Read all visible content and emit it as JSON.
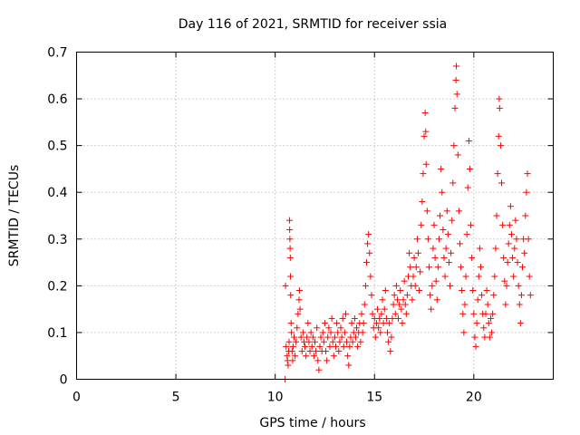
{
  "chart_data": {
    "type": "scatter",
    "title": "Day 116 of 2021, SRMTID for receiver ssia",
    "xlabel": "GPS time / hours",
    "ylabel": "SRMTID / TECUs",
    "xlim": [
      0,
      24
    ],
    "ylim": [
      0,
      0.7
    ],
    "xticks": [
      "0",
      "5",
      "10",
      "15",
      "20"
    ],
    "xtick_values": [
      0,
      5,
      10,
      15,
      20
    ],
    "yticks": [
      "0",
      "0.1",
      "0.2",
      "0.3",
      "0.4",
      "0.5",
      "0.6",
      "0.7"
    ],
    "ytick_values": [
      0,
      0.1,
      0.2,
      0.3,
      0.4,
      0.5,
      0.6,
      0.7
    ],
    "grid": true,
    "marker": "+",
    "color": "#ff0000",
    "series": [
      {
        "name": "SRMTID",
        "points": [
          [
            10.5,
            0.0
          ],
          [
            10.52,
            0.2
          ],
          [
            10.55,
            0.07
          ],
          [
            10.6,
            0.05
          ],
          [
            10.62,
            0.04
          ],
          [
            10.65,
            0.03
          ],
          [
            10.68,
            0.06
          ],
          [
            10.7,
            0.08
          ],
          [
            10.72,
            0.34
          ],
          [
            10.73,
            0.32
          ],
          [
            10.74,
            0.3
          ],
          [
            10.75,
            0.28
          ],
          [
            10.76,
            0.26
          ],
          [
            10.77,
            0.22
          ],
          [
            10.78,
            0.18
          ],
          [
            10.8,
            0.12
          ],
          [
            10.82,
            0.1
          ],
          [
            10.85,
            0.06
          ],
          [
            10.88,
            0.04
          ],
          [
            10.9,
            0.07
          ],
          [
            10.95,
            0.09
          ],
          [
            11.0,
            0.05
          ],
          [
            11.05,
            0.08
          ],
          [
            11.1,
            0.11
          ],
          [
            11.15,
            0.14
          ],
          [
            11.2,
            0.17
          ],
          [
            11.22,
            0.19
          ],
          [
            11.25,
            0.15
          ],
          [
            11.3,
            0.09
          ],
          [
            11.35,
            0.06
          ],
          [
            11.4,
            0.1
          ],
          [
            11.45,
            0.08
          ],
          [
            11.5,
            0.07
          ],
          [
            11.55,
            0.05
          ],
          [
            11.6,
            0.09
          ],
          [
            11.65,
            0.12
          ],
          [
            11.7,
            0.08
          ],
          [
            11.75,
            0.06
          ],
          [
            11.8,
            0.1
          ],
          [
            11.85,
            0.07
          ],
          [
            11.9,
            0.09
          ],
          [
            11.95,
            0.05
          ],
          [
            12.0,
            0.08
          ],
          [
            12.05,
            0.06
          ],
          [
            12.1,
            0.11
          ],
          [
            12.15,
            0.04
          ],
          [
            12.2,
            0.02
          ],
          [
            12.25,
            0.07
          ],
          [
            12.3,
            0.09
          ],
          [
            12.35,
            0.06
          ],
          [
            12.4,
            0.1
          ],
          [
            12.45,
            0.08
          ],
          [
            12.5,
            0.12
          ],
          [
            12.55,
            0.06
          ],
          [
            12.6,
            0.04
          ],
          [
            12.65,
            0.09
          ],
          [
            12.7,
            0.11
          ],
          [
            12.75,
            0.07
          ],
          [
            12.8,
            0.1
          ],
          [
            12.85,
            0.13
          ],
          [
            12.9,
            0.08
          ],
          [
            12.95,
            0.05
          ],
          [
            13.0,
            0.09
          ],
          [
            13.05,
            0.07
          ],
          [
            13.1,
            0.12
          ],
          [
            13.15,
            0.1
          ],
          [
            13.2,
            0.06
          ],
          [
            13.25,
            0.08
          ],
          [
            13.3,
            0.11
          ],
          [
            13.35,
            0.09
          ],
          [
            13.4,
            0.13
          ],
          [
            13.45,
            0.07
          ],
          [
            13.5,
            0.1
          ],
          [
            13.55,
            0.14
          ],
          [
            13.6,
            0.08
          ],
          [
            13.65,
            0.05
          ],
          [
            13.7,
            0.03
          ],
          [
            13.75,
            0.07
          ],
          [
            13.8,
            0.09
          ],
          [
            13.85,
            0.12
          ],
          [
            13.9,
            0.08
          ],
          [
            13.95,
            0.1
          ],
          [
            14.0,
            0.13
          ],
          [
            14.05,
            0.09
          ],
          [
            14.1,
            0.11
          ],
          [
            14.15,
            0.07
          ],
          [
            14.2,
            0.1
          ],
          [
            14.25,
            0.12
          ],
          [
            14.3,
            0.08
          ],
          [
            14.35,
            0.14
          ],
          [
            14.4,
            0.1
          ],
          [
            14.45,
            0.12
          ],
          [
            14.5,
            0.16
          ],
          [
            14.55,
            0.2
          ],
          [
            14.6,
            0.25
          ],
          [
            14.65,
            0.29
          ],
          [
            14.7,
            0.31
          ],
          [
            14.75,
            0.27
          ],
          [
            14.8,
            0.22
          ],
          [
            14.85,
            0.18
          ],
          [
            14.9,
            0.14
          ],
          [
            14.95,
            0.11
          ],
          [
            15.0,
            0.13
          ],
          [
            15.05,
            0.09
          ],
          [
            15.1,
            0.12
          ],
          [
            15.15,
            0.15
          ],
          [
            15.2,
            0.11
          ],
          [
            15.25,
            0.13
          ],
          [
            15.3,
            0.1
          ],
          [
            15.35,
            0.14
          ],
          [
            15.4,
            0.17
          ],
          [
            15.45,
            0.12
          ],
          [
            15.5,
            0.15
          ],
          [
            15.55,
            0.19
          ],
          [
            15.6,
            0.13
          ],
          [
            15.65,
            0.1
          ],
          [
            15.7,
            0.08
          ],
          [
            15.75,
            0.12
          ],
          [
            15.8,
            0.06
          ],
          [
            15.85,
            0.09
          ],
          [
            15.9,
            0.13
          ],
          [
            15.95,
            0.16
          ],
          [
            16.0,
            0.18
          ],
          [
            16.05,
            0.14
          ],
          [
            16.1,
            0.2
          ],
          [
            16.15,
            0.17
          ],
          [
            16.2,
            0.13
          ],
          [
            16.25,
            0.16
          ],
          [
            16.3,
            0.19
          ],
          [
            16.35,
            0.15
          ],
          [
            16.4,
            0.12
          ],
          [
            16.45,
            0.17
          ],
          [
            16.5,
            0.21
          ],
          [
            16.55,
            0.16
          ],
          [
            16.6,
            0.14
          ],
          [
            16.65,
            0.18
          ],
          [
            16.7,
            0.22
          ],
          [
            16.75,
            0.27
          ],
          [
            16.8,
            0.24
          ],
          [
            16.85,
            0.2
          ],
          [
            16.9,
            0.17
          ],
          [
            16.95,
            0.22
          ],
          [
            17.0,
            0.26
          ],
          [
            17.05,
            0.2
          ],
          [
            17.1,
            0.24
          ],
          [
            17.15,
            0.3
          ],
          [
            17.2,
            0.27
          ],
          [
            17.25,
            0.19
          ],
          [
            17.3,
            0.23
          ],
          [
            17.35,
            0.33
          ],
          [
            17.4,
            0.38
          ],
          [
            17.45,
            0.44
          ],
          [
            17.5,
            0.52
          ],
          [
            17.55,
            0.57
          ],
          [
            17.58,
            0.53
          ],
          [
            17.6,
            0.46
          ],
          [
            17.65,
            0.36
          ],
          [
            17.7,
            0.3
          ],
          [
            17.75,
            0.24
          ],
          [
            17.8,
            0.18
          ],
          [
            17.85,
            0.15
          ],
          [
            17.9,
            0.2
          ],
          [
            17.95,
            0.28
          ],
          [
            18.0,
            0.33
          ],
          [
            18.05,
            0.26
          ],
          [
            18.1,
            0.21
          ],
          [
            18.15,
            0.17
          ],
          [
            18.2,
            0.24
          ],
          [
            18.25,
            0.3
          ],
          [
            18.3,
            0.35
          ],
          [
            18.35,
            0.45
          ],
          [
            18.4,
            0.4
          ],
          [
            18.45,
            0.32
          ],
          [
            18.5,
            0.26
          ],
          [
            18.55,
            0.22
          ],
          [
            18.6,
            0.28
          ],
          [
            18.65,
            0.36
          ],
          [
            18.7,
            0.31
          ],
          [
            18.75,
            0.25
          ],
          [
            18.8,
            0.2
          ],
          [
            18.85,
            0.27
          ],
          [
            18.9,
            0.34
          ],
          [
            18.95,
            0.42
          ],
          [
            19.0,
            0.5
          ],
          [
            19.05,
            0.58
          ],
          [
            19.1,
            0.64
          ],
          [
            19.12,
            0.67
          ],
          [
            19.15,
            0.61
          ],
          [
            19.2,
            0.48
          ],
          [
            19.25,
            0.36
          ],
          [
            19.3,
            0.29
          ],
          [
            19.35,
            0.24
          ],
          [
            19.4,
            0.19
          ],
          [
            19.45,
            0.14
          ],
          [
            19.5,
            0.1
          ],
          [
            19.55,
            0.16
          ],
          [
            19.6,
            0.22
          ],
          [
            19.65,
            0.31
          ],
          [
            19.7,
            0.41
          ],
          [
            19.75,
            0.51
          ],
          [
            19.8,
            0.45
          ],
          [
            19.85,
            0.33
          ],
          [
            19.9,
            0.26
          ],
          [
            19.95,
            0.19
          ],
          [
            20.0,
            0.14
          ],
          [
            20.05,
            0.09
          ],
          [
            20.1,
            0.07
          ],
          [
            20.15,
            0.12
          ],
          [
            20.2,
            0.17
          ],
          [
            20.25,
            0.22
          ],
          [
            20.3,
            0.28
          ],
          [
            20.35,
            0.24
          ],
          [
            20.4,
            0.18
          ],
          [
            20.45,
            0.14
          ],
          [
            20.5,
            0.11
          ],
          [
            20.55,
            0.09
          ],
          [
            20.6,
            0.14
          ],
          [
            20.65,
            0.19
          ],
          [
            20.7,
            0.16
          ],
          [
            20.75,
            0.12
          ],
          [
            20.8,
            0.09
          ],
          [
            20.85,
            0.13
          ],
          [
            20.9,
            0.1
          ],
          [
            20.95,
            0.14
          ],
          [
            21.0,
            0.18
          ],
          [
            21.05,
            0.22
          ],
          [
            21.1,
            0.28
          ],
          [
            21.15,
            0.35
          ],
          [
            21.2,
            0.44
          ],
          [
            21.25,
            0.52
          ],
          [
            21.28,
            0.6
          ],
          [
            21.3,
            0.58
          ],
          [
            21.35,
            0.5
          ],
          [
            21.4,
            0.42
          ],
          [
            21.45,
            0.33
          ],
          [
            21.5,
            0.26
          ],
          [
            21.55,
            0.21
          ],
          [
            21.6,
            0.16
          ],
          [
            21.65,
            0.2
          ],
          [
            21.7,
            0.25
          ],
          [
            21.75,
            0.29
          ],
          [
            21.8,
            0.33
          ],
          [
            21.85,
            0.37
          ],
          [
            21.9,
            0.31
          ],
          [
            21.95,
            0.26
          ],
          [
            22.0,
            0.22
          ],
          [
            22.05,
            0.28
          ],
          [
            22.1,
            0.34
          ],
          [
            22.15,
            0.3
          ],
          [
            22.2,
            0.25
          ],
          [
            22.25,
            0.2
          ],
          [
            22.3,
            0.16
          ],
          [
            22.35,
            0.12
          ],
          [
            22.4,
            0.18
          ],
          [
            22.45,
            0.24
          ],
          [
            22.5,
            0.3
          ],
          [
            22.55,
            0.27
          ],
          [
            22.6,
            0.35
          ],
          [
            22.65,
            0.4
          ],
          [
            22.7,
            0.44
          ],
          [
            22.75,
            0.3
          ],
          [
            22.8,
            0.22
          ],
          [
            22.85,
            0.18
          ]
        ]
      }
    ]
  }
}
